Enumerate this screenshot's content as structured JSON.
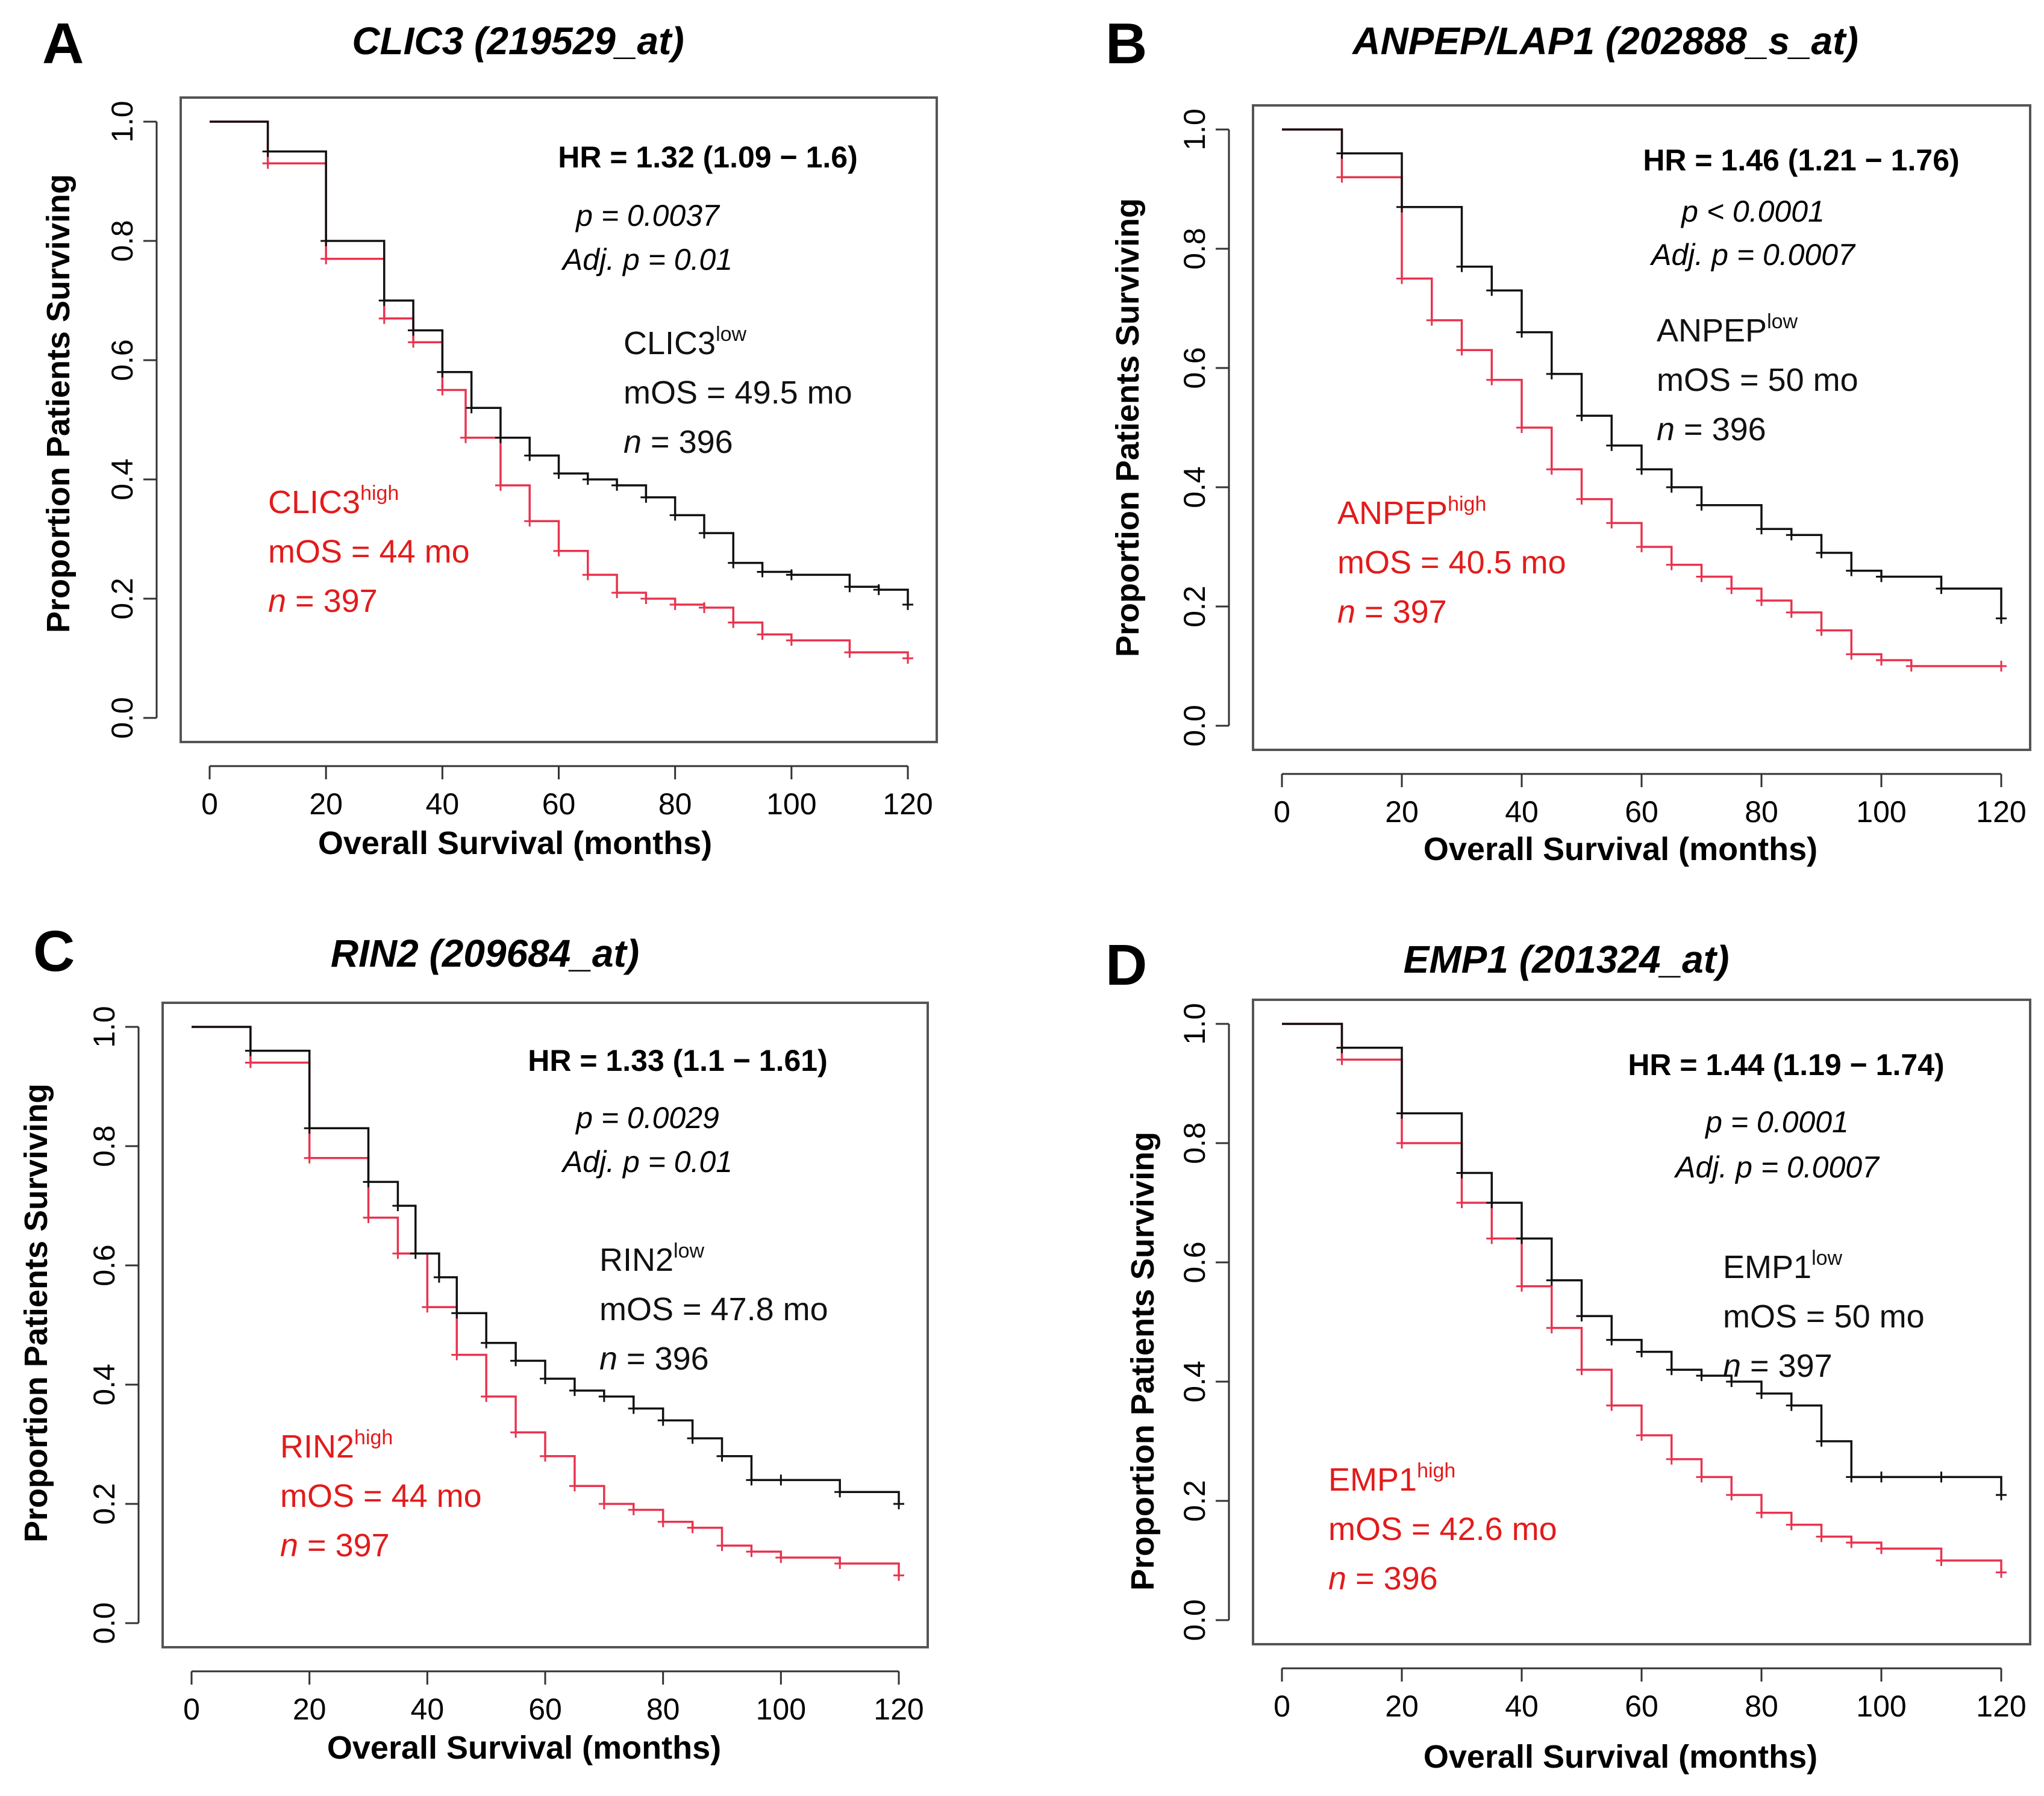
{
  "colors": {
    "low": "#111111",
    "high": "#e8334f",
    "high_label": "#e21b1b",
    "frame": "#555555"
  },
  "chart_data": [
    {
      "type": "line",
      "subtype": "kaplan-meier",
      "panel": "A",
      "title": "CLIC3 (219529_at)",
      "xlabel": "Overall Survival (months)",
      "ylabel": "Proportion Patients Surviving",
      "xlim": [
        0,
        120
      ],
      "ylim": [
        0,
        1
      ],
      "xticks": [
        "0",
        "20",
        "40",
        "60",
        "80",
        "100",
        "120"
      ],
      "yticks": [
        "0.0",
        "0.2",
        "0.4",
        "0.6",
        "0.8",
        "1.0"
      ],
      "stats": {
        "hr": "HR = 1.32 (1.09 − 1.6)",
        "p": "p = 0.0037",
        "adj_p": "Adj. p = 0.01"
      },
      "series": [
        {
          "name": "low",
          "label": "CLIC3",
          "sup": "low",
          "mos": "mOS = 49.5 mo",
          "n_prefix": "n",
          "n_value": " = 396",
          "x": [
            0,
            10,
            20,
            30,
            35,
            40,
            45,
            50,
            55,
            60,
            65,
            70,
            75,
            80,
            85,
            90,
            95,
            100,
            110,
            115,
            120
          ],
          "y": [
            1.0,
            0.95,
            0.8,
            0.7,
            0.65,
            0.58,
            0.52,
            0.47,
            0.44,
            0.41,
            0.4,
            0.39,
            0.37,
            0.34,
            0.31,
            0.26,
            0.245,
            0.24,
            0.22,
            0.215,
            0.19
          ]
        },
        {
          "name": "high",
          "label": "CLIC3",
          "sup": "high",
          "mos": "mOS = 44 mo",
          "n_prefix": "n",
          "n_value": " = 397",
          "x": [
            0,
            10,
            20,
            30,
            35,
            40,
            44,
            50,
            55,
            60,
            65,
            70,
            75,
            80,
            85,
            90,
            95,
            100,
            110,
            120
          ],
          "y": [
            1.0,
            0.93,
            0.77,
            0.67,
            0.63,
            0.55,
            0.47,
            0.39,
            0.33,
            0.28,
            0.24,
            0.21,
            0.2,
            0.19,
            0.185,
            0.16,
            0.14,
            0.13,
            0.11,
            0.1
          ]
        }
      ]
    },
    {
      "type": "line",
      "subtype": "kaplan-meier",
      "panel": "B",
      "title": "ANPEP/LAP1 (202888_s_at)",
      "xlabel": "Overall Survival (months)",
      "ylabel": "Proportion Patients Surviving",
      "xlim": [
        0,
        120
      ],
      "ylim": [
        0,
        1
      ],
      "xticks": [
        "0",
        "20",
        "40",
        "60",
        "80",
        "100",
        "120"
      ],
      "yticks": [
        "0.0",
        "0.2",
        "0.4",
        "0.6",
        "0.8",
        "1.0"
      ],
      "stats": {
        "hr": "HR = 1.46 (1.21 − 1.76)",
        "p": "p < 0.0001",
        "adj_p": "Adj. p = 0.0007"
      },
      "series": [
        {
          "name": "low",
          "label": "ANPEP",
          "sup": "low",
          "mos": "mOS = 50 mo",
          "n_prefix": "n",
          "n_value": " = 396",
          "x": [
            0,
            10,
            20,
            30,
            35,
            40,
            45,
            50,
            55,
            60,
            65,
            70,
            80,
            85,
            90,
            95,
            100,
            110,
            120
          ],
          "y": [
            1.0,
            0.96,
            0.87,
            0.77,
            0.73,
            0.66,
            0.59,
            0.52,
            0.47,
            0.43,
            0.4,
            0.37,
            0.33,
            0.32,
            0.29,
            0.26,
            0.25,
            0.23,
            0.18
          ]
        },
        {
          "name": "high",
          "label": "ANPEP",
          "sup": "high",
          "mos": "mOS = 40.5 mo",
          "n_prefix": "n",
          "n_value": " = 397",
          "x": [
            0,
            10,
            20,
            25,
            30,
            35,
            40,
            45,
            50,
            55,
            60,
            65,
            70,
            75,
            80,
            85,
            90,
            95,
            100,
            105,
            120
          ],
          "y": [
            1.0,
            0.92,
            0.75,
            0.68,
            0.63,
            0.58,
            0.5,
            0.43,
            0.38,
            0.34,
            0.3,
            0.27,
            0.25,
            0.23,
            0.21,
            0.19,
            0.16,
            0.12,
            0.11,
            0.1,
            0.1
          ]
        }
      ]
    },
    {
      "type": "line",
      "subtype": "kaplan-meier",
      "panel": "C",
      "title": "RIN2 (209684_at)",
      "xlabel": "Overall Survival (months)",
      "ylabel": "Proportion Patients Surviving",
      "xlim": [
        0,
        120
      ],
      "ylim": [
        0,
        1
      ],
      "xticks": [
        "0",
        "20",
        "40",
        "60",
        "80",
        "100",
        "120"
      ],
      "yticks": [
        "0.0",
        "0.2",
        "0.4",
        "0.6",
        "0.8",
        "1.0"
      ],
      "stats": {
        "hr": "HR = 1.33 (1.1 − 1.61)",
        "p": "p = 0.0029",
        "adj_p": "Adj. p = 0.01"
      },
      "series": [
        {
          "name": "low",
          "label": "RIN2",
          "sup": "low",
          "mos": "mOS = 47.8 mo",
          "n_prefix": "n",
          "n_value": " = 396",
          "x": [
            0,
            10,
            20,
            30,
            35,
            38,
            42,
            45,
            50,
            55,
            60,
            65,
            70,
            75,
            80,
            85,
            90,
            95,
            100,
            110,
            120
          ],
          "y": [
            1.0,
            0.96,
            0.83,
            0.74,
            0.7,
            0.62,
            0.58,
            0.52,
            0.47,
            0.44,
            0.41,
            0.39,
            0.38,
            0.36,
            0.34,
            0.31,
            0.28,
            0.24,
            0.24,
            0.22,
            0.2
          ]
        },
        {
          "name": "high",
          "label": "RIN2",
          "sup": "high",
          "mos": "mOS = 44 mo",
          "n_prefix": "n",
          "n_value": " = 397",
          "x": [
            0,
            10,
            20,
            30,
            35,
            40,
            45,
            50,
            55,
            60,
            65,
            70,
            75,
            80,
            85,
            90,
            95,
            100,
            110,
            120
          ],
          "y": [
            1.0,
            0.94,
            0.78,
            0.68,
            0.62,
            0.53,
            0.45,
            0.38,
            0.32,
            0.28,
            0.23,
            0.2,
            0.19,
            0.17,
            0.16,
            0.13,
            0.12,
            0.11,
            0.1,
            0.08
          ]
        }
      ]
    },
    {
      "type": "line",
      "subtype": "kaplan-meier",
      "panel": "D",
      "title": "EMP1 (201324_at)",
      "xlabel": "Overall Survival (months)",
      "ylabel": "Proportion Patients Surviving",
      "xlim": [
        0,
        120
      ],
      "ylim": [
        0,
        1
      ],
      "xticks": [
        "0",
        "20",
        "40",
        "60",
        "80",
        "100",
        "120"
      ],
      "yticks": [
        "0.0",
        "0.2",
        "0.4",
        "0.6",
        "0.8",
        "1.0"
      ],
      "stats": {
        "hr": "HR = 1.44 (1.19 − 1.74)",
        "p": "p = 0.0001",
        "adj_p": "Adj. p = 0.0007"
      },
      "series": [
        {
          "name": "low",
          "label": "EMP1",
          "sup": "low",
          "mos": "mOS = 50 mo",
          "n_prefix": "n",
          "n_value": " = 397",
          "x": [
            0,
            10,
            20,
            30,
            35,
            40,
            45,
            50,
            55,
            60,
            65,
            70,
            75,
            80,
            85,
            90,
            95,
            100,
            110,
            120
          ],
          "y": [
            1.0,
            0.96,
            0.85,
            0.75,
            0.7,
            0.64,
            0.57,
            0.51,
            0.47,
            0.45,
            0.42,
            0.41,
            0.4,
            0.38,
            0.36,
            0.3,
            0.24,
            0.24,
            0.24,
            0.21
          ]
        },
        {
          "name": "high",
          "label": "EMP1",
          "sup": "high",
          "mos": "mOS = 42.6 mo",
          "n_prefix": "n",
          "n_value": " = 396",
          "x": [
            0,
            10,
            20,
            30,
            35,
            40,
            45,
            50,
            55,
            60,
            65,
            70,
            75,
            80,
            85,
            90,
            95,
            100,
            110,
            120
          ],
          "y": [
            1.0,
            0.94,
            0.8,
            0.7,
            0.64,
            0.56,
            0.49,
            0.42,
            0.36,
            0.31,
            0.27,
            0.24,
            0.21,
            0.18,
            0.16,
            0.14,
            0.13,
            0.12,
            0.1,
            0.08
          ]
        }
      ]
    }
  ]
}
